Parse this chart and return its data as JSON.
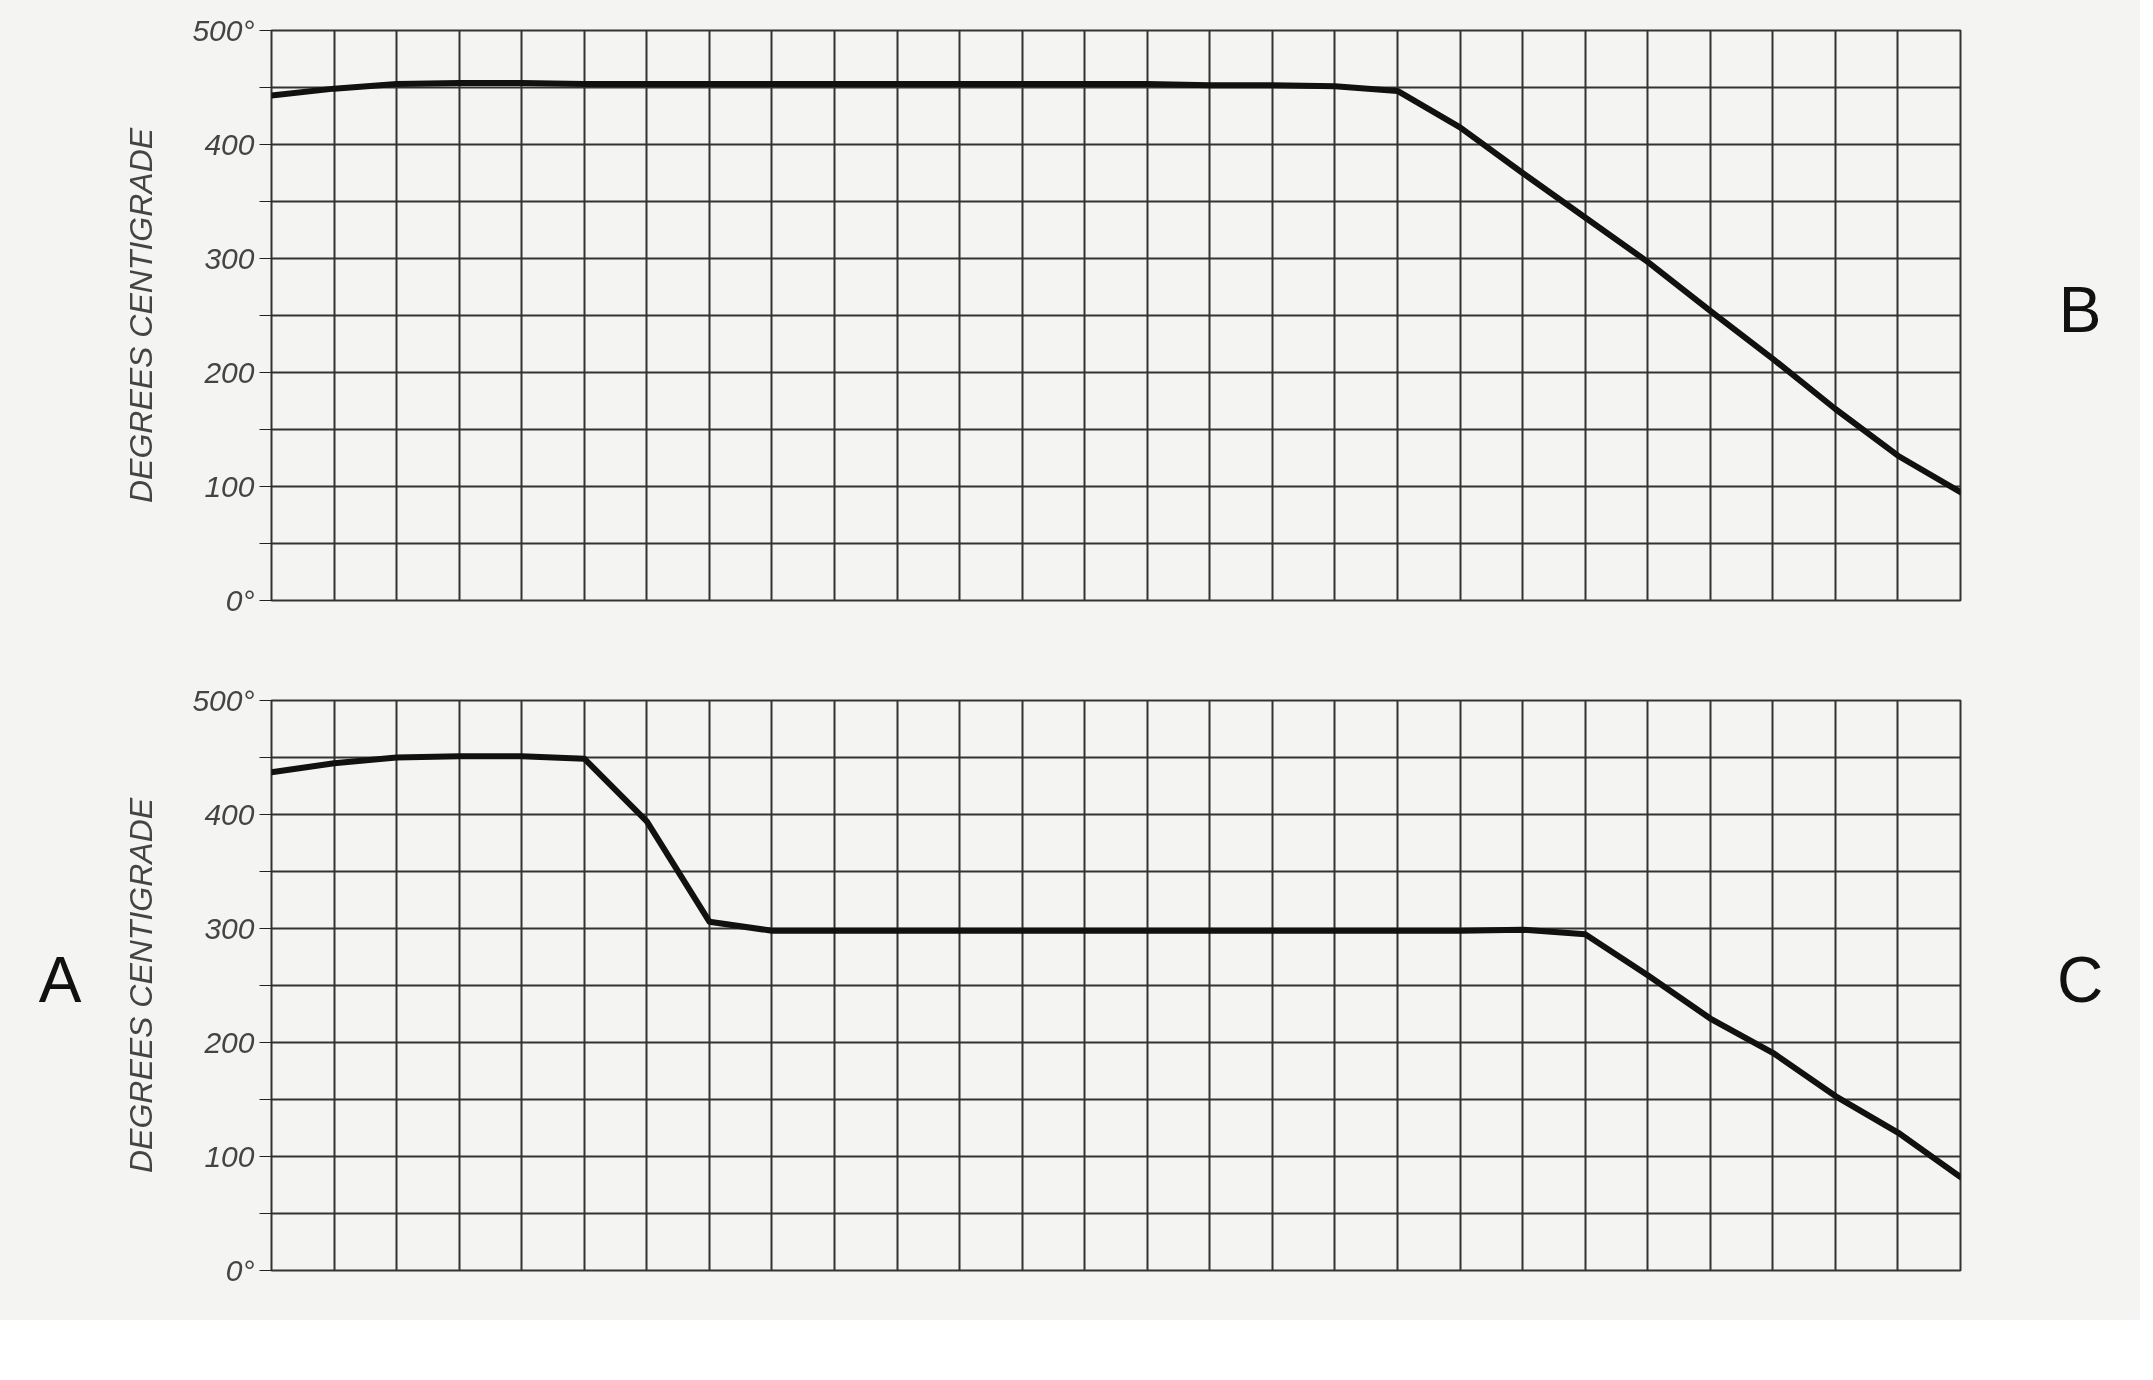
{
  "chart_data": [
    {
      "type": "line",
      "ylabel": "DEGREES CENTIGRADE",
      "annotations": [
        "B"
      ],
      "categories": [
        null,
        null,
        null,
        null,
        null,
        null,
        null,
        null,
        null,
        null,
        null,
        null,
        null,
        null,
        null,
        null,
        null,
        null,
        null,
        null,
        null,
        null,
        null,
        null,
        null,
        null,
        null,
        null
      ],
      "series": [
        {
          "color": "#111111",
          "values": [
            443,
            449,
            453,
            454,
            454,
            453,
            453,
            453,
            453,
            453,
            453,
            453,
            453,
            453,
            453,
            452,
            452,
            451,
            447,
            415,
            375,
            336,
            297,
            254,
            212,
            168,
            127,
            95
          ]
        }
      ],
      "ylim": [
        0,
        500
      ],
      "yticks": [
        {
          "value": 0,
          "label": "0°"
        },
        {
          "value": 50,
          "label": null
        },
        100,
        {
          "value": 150,
          "label": null
        },
        200,
        {
          "value": 250,
          "label": null
        },
        300,
        {
          "value": 350,
          "label": null
        },
        400,
        {
          "value": 450,
          "label": null
        },
        {
          "value": 500,
          "label": "500°"
        }
      ],
      "tick_labels": "y",
      "grid": true,
      "marker": "none",
      "line_style": "solid"
    },
    {
      "type": "line",
      "ylabel": "DEGREES CENTIGRADE",
      "annotations": [
        "A",
        "C"
      ],
      "categories": [
        null,
        null,
        null,
        null,
        null,
        null,
        null,
        null,
        null,
        null,
        null,
        null,
        null,
        null,
        null,
        null,
        null,
        null,
        null,
        null,
        null,
        null,
        null,
        null,
        null,
        null,
        null,
        null
      ],
      "series": [
        {
          "color": "#111111",
          "values": [
            437,
            445,
            450,
            451,
            451,
            449,
            394,
            306,
            298,
            298,
            298,
            298,
            298,
            298,
            298,
            298,
            298,
            298,
            298,
            298,
            299,
            295,
            259,
            221,
            191,
            153,
            121,
            82
          ]
        }
      ],
      "ylim": [
        0,
        500
      ],
      "yticks": [
        {
          "value": 0,
          "label": "0°"
        },
        {
          "value": 50,
          "label": null
        },
        100,
        {
          "value": 150,
          "label": null
        },
        200,
        {
          "value": 250,
          "label": null
        },
        300,
        {
          "value": 350,
          "label": null
        },
        400,
        {
          "value": 450,
          "label": null
        },
        {
          "value": 500,
          "label": "500°"
        }
      ],
      "tick_labels": "y",
      "grid": true,
      "marker": "none",
      "line_style": "solid"
    }
  ]
}
